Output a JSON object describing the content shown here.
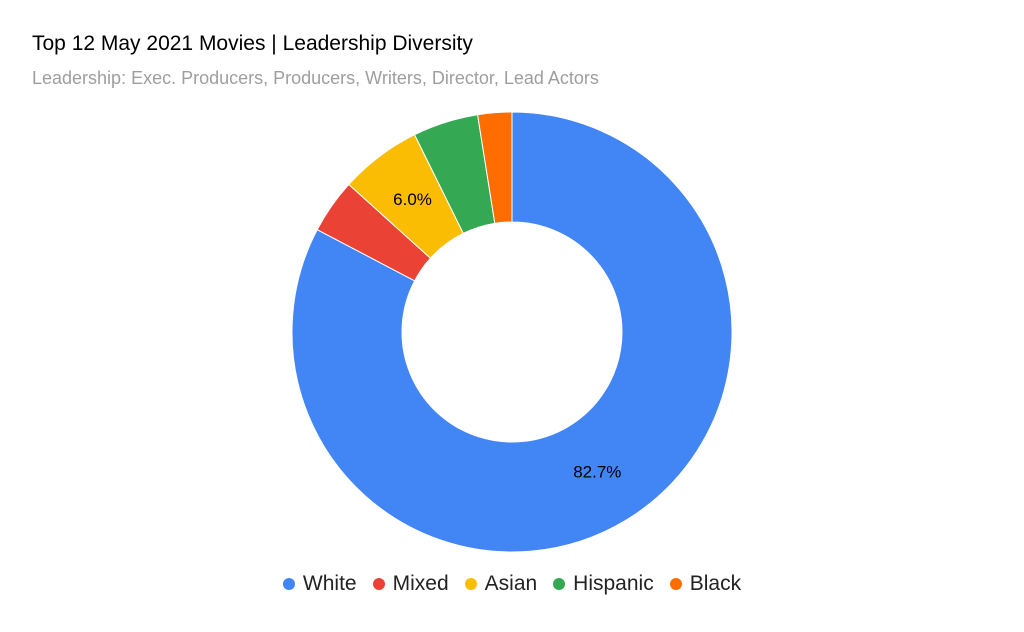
{
  "chart_data": {
    "type": "pie",
    "donut": true,
    "title": "Top 12 May 2021 Movies | Leadership Diversity",
    "subtitle": "Leadership: Exec. Producers, Producers, Writers, Director, Lead Actors",
    "categories": [
      "White",
      "Mixed",
      "Asian",
      "Hispanic",
      "Black"
    ],
    "values": [
      82.7,
      4.0,
      6.0,
      4.8,
      2.5
    ],
    "colors": [
      "#4285f4",
      "#ea4335",
      "#fbbc04",
      "#34a853",
      "#ff6d01"
    ],
    "data_labels": [
      "82.7%",
      "",
      "6.0%",
      "",
      ""
    ],
    "legend_position": "bottom"
  }
}
